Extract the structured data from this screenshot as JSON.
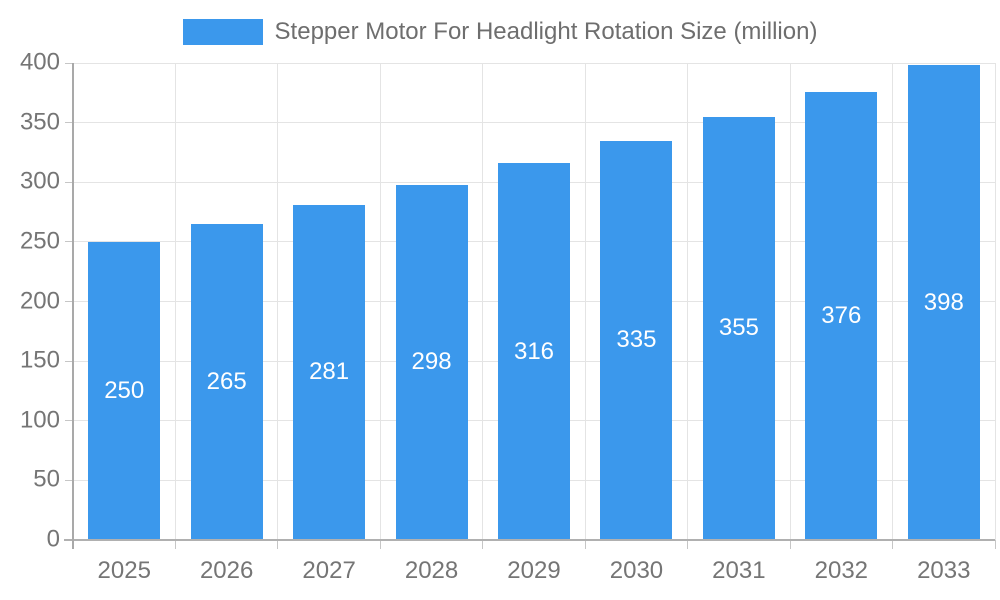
{
  "legend": {
    "label": "Stepper Motor For Headlight Rotation Size (million)"
  },
  "chart_data": {
    "type": "bar",
    "title": "Stepper Motor For Headlight Rotation Size (million)",
    "categories": [
      "2025",
      "2026",
      "2027",
      "2028",
      "2029",
      "2030",
      "2031",
      "2032",
      "2033"
    ],
    "values": [
      250,
      265,
      281,
      298,
      316,
      335,
      355,
      376,
      398
    ],
    "xlabel": "",
    "ylabel": "",
    "ylim": [
      0,
      400
    ],
    "ytick_step": 50,
    "ytick_labels": [
      "0",
      "50",
      "100",
      "150",
      "200",
      "250",
      "300",
      "350",
      "400"
    ],
    "grid": "on",
    "legend_position": "top-center",
    "bar_color": "#3B98EC",
    "value_label_color": "#ffffff",
    "axis_text_color": "#757575",
    "legend_text_color": "#6e6e6e",
    "gridline_color": "#e4e4e4",
    "axis_line_color": "#b0b0b0",
    "background_color": "#ffffff"
  }
}
